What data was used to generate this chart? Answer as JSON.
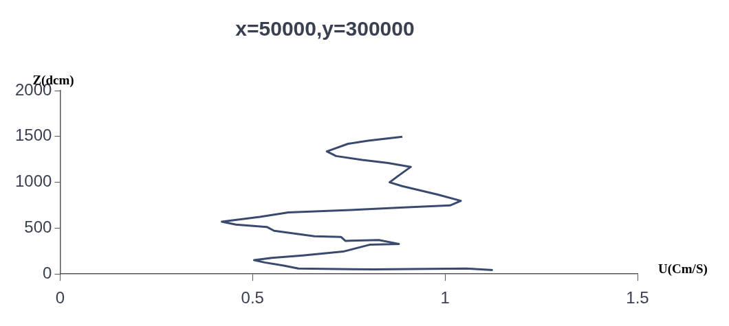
{
  "chart_data": {
    "type": "line",
    "title": "x=50000,y=300000",
    "xlabel": "U(Cm/S)",
    "ylabel": "Z(dcm)",
    "xlim": [
      0,
      1.5
    ],
    "xticks": [
      0,
      0.5,
      1,
      1.5
    ],
    "ylim": [
      0,
      2000
    ],
    "yticks": [
      0,
      500,
      1000,
      1500,
      2000
    ],
    "marker": "none",
    "line_style": "solid",
    "x": [
      0.889,
      0.8,
      0.748,
      0.693,
      0.717,
      0.785,
      0.852,
      0.911,
      0.883,
      0.856,
      0.889,
      0.981,
      1.041,
      1.013,
      0.883,
      0.754,
      0.593,
      0.519,
      0.42,
      0.457,
      0.537,
      0.556,
      0.661,
      0.73,
      0.741,
      0.828,
      0.88,
      0.804,
      0.735,
      0.63,
      0.55,
      0.504,
      0.531,
      0.581,
      0.619,
      0.815,
      1.056,
      1.124
    ],
    "series": [
      {
        "color": "#3a4a6e",
        "values": [
          1496,
          1454,
          1420,
          1336,
          1286,
          1244,
          1210,
          1168,
          1084,
          1000,
          958,
          866,
          798,
          748,
          723,
          697,
          672,
          622,
          571,
          538,
          513,
          471,
          412,
          403,
          361,
          370,
          328,
          319,
          244,
          202,
          176,
          151,
          126,
          92,
          59,
          50,
          59,
          42
        ]
      }
    ]
  }
}
